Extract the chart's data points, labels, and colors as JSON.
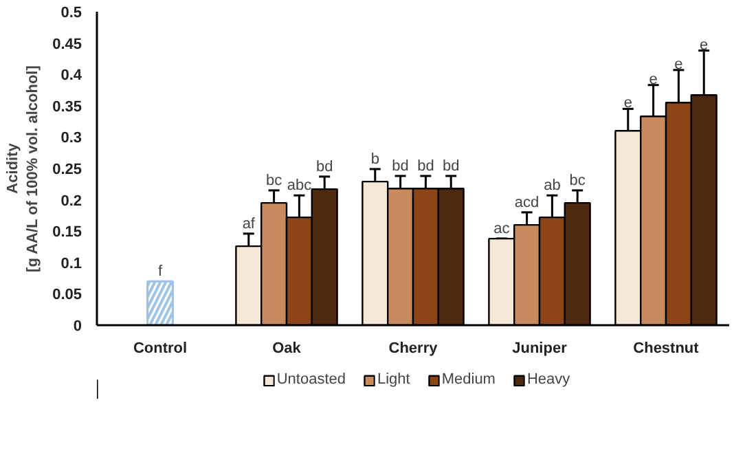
{
  "chart_data": {
    "type": "bar",
    "ylabel": "Acidity\n[g AA/L of 100% vol. alcohol]",
    "categories": [
      "Control",
      "Oak",
      "Cherry",
      "Juniper",
      "Chestnut"
    ],
    "series": [
      {
        "color": "#9dc3e6",
        "values": [
          0.07,
          null,
          null,
          null,
          null
        ],
        "value_labels": [
          "f",
          null,
          null,
          null,
          null
        ]
      },
      {
        "name": "Untoasted",
        "color": "#f6e8d6",
        "values": [
          null,
          0.126,
          0.229,
          0.138,
          0.31
        ],
        "errors": [
          null,
          0.02,
          0.02,
          null,
          0.035
        ],
        "value_labels": [
          null,
          "af",
          "b",
          "ac",
          "e"
        ]
      },
      {
        "name": "Light",
        "color": "#c98b5e",
        "values": [
          null,
          0.195,
          0.218,
          0.16,
          0.333
        ],
        "errors": [
          null,
          0.02,
          0.02,
          0.02,
          0.05
        ],
        "value_labels": [
          null,
          "bc",
          "bd",
          "acd",
          "e"
        ]
      },
      {
        "name": "Medium",
        "color": "#8b4516",
        "values": [
          null,
          0.172,
          0.218,
          0.172,
          0.355
        ],
        "errors": [
          null,
          0.035,
          0.02,
          0.035,
          0.052
        ],
        "value_labels": [
          null,
          "abc",
          "bd",
          "ab",
          "e"
        ]
      },
      {
        "name": "Heavy",
        "color": "#4f2810",
        "values": [
          null,
          0.217,
          0.218,
          0.195,
          0.367
        ],
        "errors": [
          null,
          0.02,
          0.02,
          0.02,
          0.071
        ],
        "value_labels": [
          null,
          "bd",
          "bd",
          "bc",
          "e"
        ]
      }
    ],
    "ylim": [
      0,
      0.5
    ],
    "yticks": [
      0,
      0.05,
      0.1,
      0.15,
      0.2,
      0.25,
      0.3,
      0.35,
      0.4,
      0.45,
      0.5
    ],
    "grid": false,
    "legend": "bottom"
  }
}
